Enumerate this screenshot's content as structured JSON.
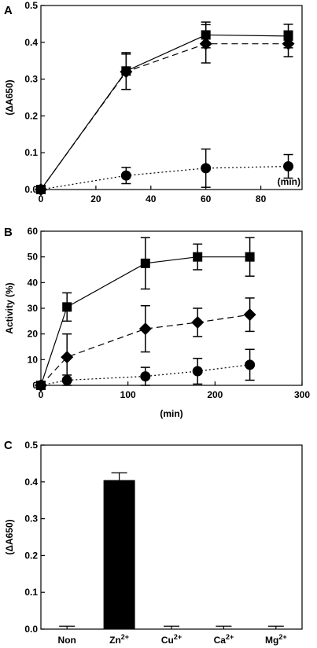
{
  "chart_data": [
    {
      "panel": "A",
      "type": "line",
      "ylabel": "(ΔA650)",
      "xlabel": "(min)",
      "xlim": [
        0,
        95
      ],
      "ylim": [
        0,
        0.5
      ],
      "xticks": [
        0,
        20,
        40,
        60,
        80
      ],
      "yticks": [
        "0.0",
        "0.1",
        "0.2",
        "0.3",
        "0.4",
        "0.5"
      ],
      "series": [
        {
          "marker": "square",
          "style": "solid",
          "x": [
            0,
            31,
            60,
            90
          ],
          "y": [
            0.0,
            0.322,
            0.42,
            0.417
          ],
          "err": [
            0,
            0.05,
            0.035,
            0.032
          ]
        },
        {
          "marker": "diamond",
          "style": "dashed",
          "x": [
            0,
            31,
            60,
            90
          ],
          "y": [
            0.0,
            0.32,
            0.396,
            0.396
          ],
          "err": [
            0,
            0.048,
            0.052,
            0.035
          ]
        },
        {
          "marker": "circle",
          "style": "dotted",
          "x": [
            0,
            31,
            60,
            90
          ],
          "y": [
            0.0,
            0.038,
            0.058,
            0.063
          ],
          "err": [
            0,
            0.022,
            0.052,
            0.032
          ]
        }
      ]
    },
    {
      "panel": "B",
      "type": "line",
      "ylabel": "Activity (%)",
      "xlabel": "(min)",
      "xlim": [
        0,
        300
      ],
      "ylim": [
        0,
        60
      ],
      "xticks": [
        0,
        100,
        200,
        300
      ],
      "yticks": [
        "0",
        "10",
        "20",
        "30",
        "40",
        "50",
        "60"
      ],
      "series": [
        {
          "marker": "square",
          "style": "solid",
          "x": [
            0,
            30,
            120,
            180,
            240
          ],
          "y": [
            0,
            30.5,
            47.5,
            50,
            50
          ],
          "err": [
            0,
            5.5,
            10,
            5,
            7.5
          ]
        },
        {
          "marker": "diamond",
          "style": "dashed",
          "x": [
            0,
            30,
            120,
            180,
            240
          ],
          "y": [
            0,
            11,
            22,
            24.5,
            27.5
          ],
          "err": [
            0,
            9,
            9,
            5.5,
            6.5
          ]
        },
        {
          "marker": "circle",
          "style": "dotted",
          "x": [
            0,
            30,
            120,
            180,
            240
          ],
          "y": [
            0,
            2,
            3.5,
            5.5,
            8
          ],
          "err": [
            0,
            2,
            3.5,
            5,
            6
          ]
        }
      ]
    },
    {
      "panel": "C",
      "type": "bar",
      "ylabel": "(ΔA650)",
      "ylim": [
        0,
        0.5
      ],
      "yticks": [
        "0.0",
        "0.1",
        "0.2",
        "0.3",
        "0.4",
        "0.5"
      ],
      "categories": [
        {
          "base": "Non",
          "sup": ""
        },
        {
          "base": "Zn",
          "sup": "2+"
        },
        {
          "base": "Cu",
          "sup": "2+"
        },
        {
          "base": "Ca",
          "sup": "2+"
        },
        {
          "base": "Mg",
          "sup": "2+"
        }
      ],
      "values": [
        0.0,
        0.405,
        0.0,
        0.0,
        0.0
      ],
      "err": [
        0.008,
        0.02,
        0.008,
        0.008,
        0.008
      ]
    }
  ]
}
